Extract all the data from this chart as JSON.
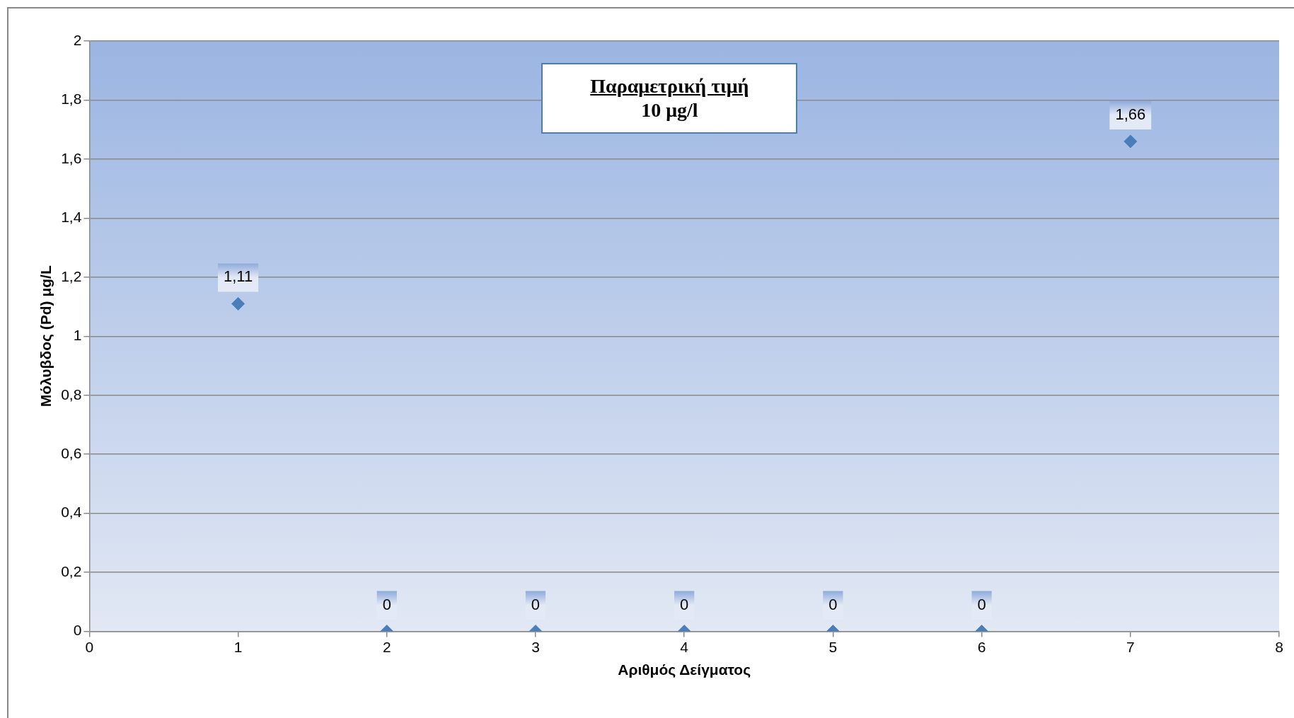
{
  "chart_data": {
    "type": "scatter",
    "xlabel": "Αριθμός Δείγματος",
    "ylabel": "Μόλυβδος (Pd) μg/L",
    "annotations": [
      "Παραμετρική τιμή",
      "10 μg/l"
    ],
    "x": [
      1,
      2,
      3,
      4,
      5,
      6,
      7
    ],
    "series": [
      {
        "color": "#4a7ebb",
        "values": [
          1.11,
          0,
          0,
          0,
          0,
          0,
          1.66
        ],
        "value_labels": [
          "1,11",
          "0",
          "0",
          "0",
          "0",
          "0",
          "1,66"
        ]
      }
    ],
    "xlim": [
      0,
      8
    ],
    "xticks": [
      0,
      1,
      2,
      3,
      4,
      5,
      6,
      7,
      8
    ],
    "ylim": [
      0,
      2
    ],
    "yticks": [
      0,
      {
        "value": 0.2,
        "label": "0,2"
      },
      {
        "value": 0.4,
        "label": "0,4"
      },
      {
        "value": 0.6,
        "label": "0,6"
      },
      {
        "value": 0.8,
        "label": "0,8"
      },
      1,
      {
        "value": 1.2,
        "label": "1,2"
      },
      {
        "value": 1.4,
        "label": "1,4"
      },
      {
        "value": 1.6,
        "label": "1,6"
      },
      {
        "value": 1.8,
        "label": "1,8"
      },
      2
    ],
    "grid": "y",
    "marker": "diamond",
    "legend": false
  }
}
